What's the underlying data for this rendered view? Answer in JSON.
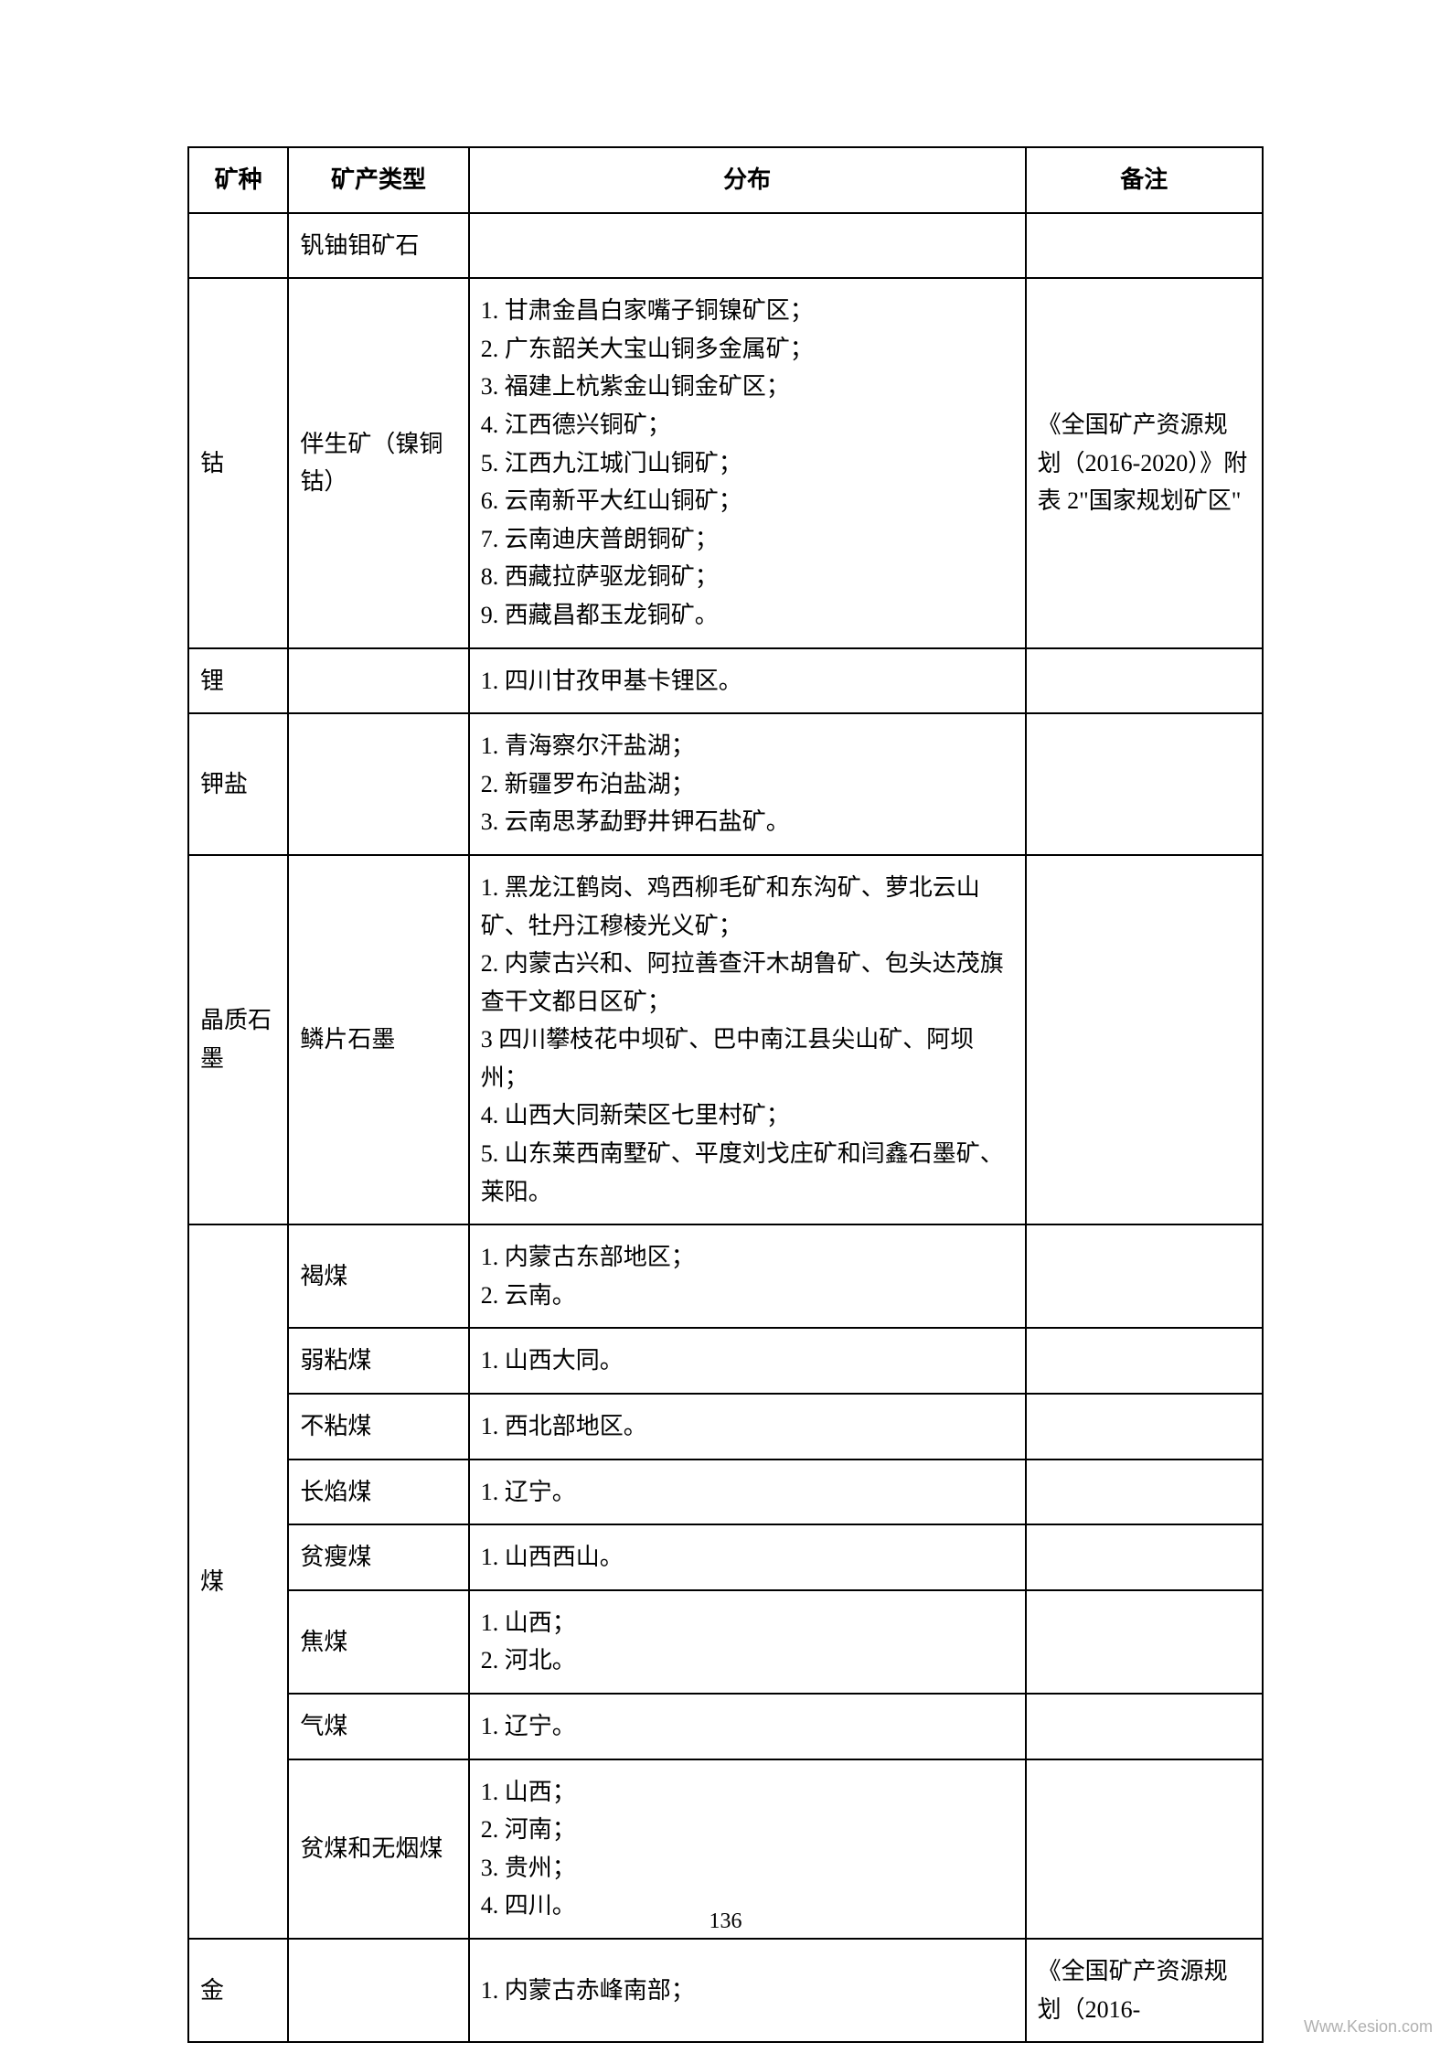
{
  "table": {
    "headers": {
      "mineral": "矿种",
      "type": "矿产类型",
      "distribution": "分布",
      "notes": "备注"
    },
    "rows": {
      "r1": {
        "mineral": "",
        "type": "钒铀钼矿石",
        "distribution": "",
        "notes": ""
      },
      "r2": {
        "mineral": "钴",
        "type": "伴生矿（镍铜钴）",
        "distribution": "1. 甘肃金昌白家嘴子铜镍矿区；\n2. 广东韶关大宝山铜多金属矿；\n3. 福建上杭紫金山铜金矿区；\n4. 江西德兴铜矿；\n5. 江西九江城门山铜矿；\n6. 云南新平大红山铜矿；\n7. 云南迪庆普朗铜矿；\n8. 西藏拉萨驱龙铜矿；\n9. 西藏昌都玉龙铜矿。",
        "notes": "《全国矿产资源规划（2016-2020）》附表 2\"国家规划矿区\""
      },
      "r3": {
        "mineral": "锂",
        "type": "",
        "distribution": "1. 四川甘孜甲基卡锂区。",
        "notes": ""
      },
      "r4": {
        "mineral": "钾盐",
        "type": "",
        "distribution": "1. 青海察尔汗盐湖；\n2. 新疆罗布泊盐湖；\n3. 云南思茅勐野井钾石盐矿。",
        "notes": ""
      },
      "r5": {
        "mineral": "晶质石墨",
        "type": "鳞片石墨",
        "distribution": "1. 黑龙江鹤岗、鸡西柳毛矿和东沟矿、萝北云山矿、牡丹江穆棱光义矿；\n2. 内蒙古兴和、阿拉善查汗木胡鲁矿、包头达茂旗查干文都日区矿；\n3 四川攀枝花中坝矿、巴中南江县尖山矿、阿坝州；\n4. 山西大同新荣区七里村矿；\n5. 山东莱西南墅矿、平度刘戈庄矿和闫鑫石墨矿、莱阳。",
        "notes": ""
      },
      "r6a": {
        "mineral": "煤",
        "type": "褐煤",
        "distribution": "1. 内蒙古东部地区；\n2. 云南。",
        "notes": ""
      },
      "r6b": {
        "type": "弱粘煤",
        "distribution": "1. 山西大同。",
        "notes": ""
      },
      "r6c": {
        "type": "不粘煤",
        "distribution": "1. 西北部地区。",
        "notes": ""
      },
      "r6d": {
        "type": "长焰煤",
        "distribution": "1. 辽宁。",
        "notes": ""
      },
      "r6e": {
        "type": "贫瘦煤",
        "distribution": "1. 山西西山。",
        "notes": ""
      },
      "r6f": {
        "type": "焦煤",
        "distribution": "1. 山西；\n2. 河北。",
        "notes": ""
      },
      "r6g": {
        "type": "气煤",
        "distribution": "1. 辽宁。",
        "notes": ""
      },
      "r6h": {
        "type": "贫煤和无烟煤",
        "distribution": "1. 山西；\n2. 河南；\n3. 贵州；\n4. 四川。",
        "notes": ""
      },
      "r7": {
        "mineral": "金",
        "type": "",
        "distribution": "1. 内蒙古赤峰南部；",
        "notes": "《全国矿产资源规划（2016-"
      }
    },
    "column_widths": {
      "mineral": 97,
      "type": 175,
      "distribution": 540,
      "notes": 230
    },
    "styling": {
      "border_color": "#000000",
      "border_width": 2,
      "font_size": 26,
      "line_height": 1.6,
      "background_color": "#ffffff",
      "text_color": "#000000"
    }
  },
  "page_number": "136",
  "watermark": "Www.Kesion.com"
}
